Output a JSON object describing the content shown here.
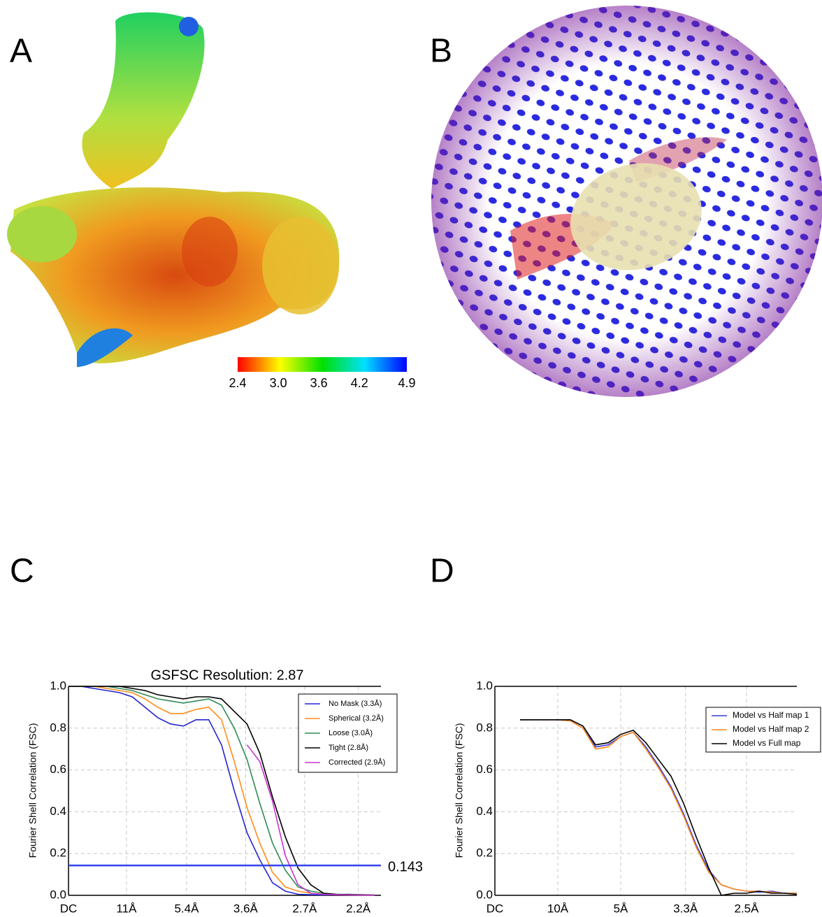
{
  "panel_labels": [
    "A",
    "B",
    "C",
    "D"
  ],
  "colorbar": {
    "lim": [
      2.4,
      4.9
    ],
    "ticks": [
      2.4,
      {
        "value": 3.0,
        "label": "3.0"
      },
      3.6,
      4.2,
      4.9
    ]
  },
  "chart_data": [
    {
      "type": "line",
      "title": "GSFSC Resolution: 2.87",
      "ylabel": "Fourier Shell Correlation (FSC)",
      "x": [
        0,
        0.02,
        0.04,
        0.06,
        0.08,
        0.1,
        0.12,
        0.14,
        0.16,
        0.18,
        0.2,
        0.22,
        0.24,
        0.26,
        0.28,
        0.3,
        0.32,
        0.34,
        0.36,
        0.38,
        0.4,
        0.42,
        0.44,
        0.46,
        0.48
      ],
      "series": [
        {
          "name": "No Mask (3.3Å)",
          "color": "#2424d4",
          "values": [
            1.0,
            1.0,
            0.99,
            0.98,
            0.97,
            0.95,
            0.9,
            0.85,
            0.82,
            0.81,
            0.84,
            0.84,
            0.72,
            0.5,
            0.3,
            0.17,
            0.06,
            0.02,
            0.005,
            0.003,
            0.002,
            0.003,
            0.005,
            0.002,
            0.001
          ]
        },
        {
          "name": "Spherical (3.2Å)",
          "color": "#ff8c1a",
          "values": [
            1.0,
            1.0,
            1.0,
            0.99,
            0.98,
            0.97,
            0.94,
            0.9,
            0.87,
            0.87,
            0.89,
            0.9,
            0.84,
            0.64,
            0.42,
            0.25,
            0.11,
            0.04,
            0.02,
            0.01,
            0.005,
            0.004,
            0.003,
            0.002,
            0.001
          ]
        },
        {
          "name": "Loose (3.0Å)",
          "color": "#2e8b57",
          "values": [
            1.0,
            1.0,
            1.0,
            1.0,
            0.99,
            0.98,
            0.96,
            0.94,
            0.93,
            0.92,
            0.93,
            0.94,
            0.91,
            0.8,
            0.65,
            0.44,
            0.25,
            0.12,
            0.04,
            0.02,
            0.01,
            0.005,
            0.004,
            0.003,
            0.002
          ]
        },
        {
          "name": "Tight (2.8Å)",
          "color": "#000000",
          "values": [
            1.0,
            1.0,
            1.0,
            1.0,
            1.0,
            0.99,
            0.98,
            0.96,
            0.95,
            0.94,
            0.95,
            0.95,
            0.94,
            0.88,
            0.82,
            0.68,
            0.47,
            0.28,
            0.13,
            0.05,
            0.01,
            0.005,
            0.003,
            0.002,
            0.001
          ]
        },
        {
          "name": "Corrected (2.9Å)",
          "color": "#cc33cc",
          "values": [
            null,
            null,
            null,
            null,
            null,
            null,
            null,
            null,
            null,
            null,
            null,
            null,
            null,
            null,
            0.72,
            0.64,
            0.45,
            0.19,
            0.05,
            0.01,
            0.005,
            0.003,
            0.002,
            0.001,
            0.001
          ]
        }
      ],
      "threshold": 0.143,
      "threshold_color": "#3344ee",
      "xlim": [
        0,
        0.49
      ],
      "xticks": [
        {
          "value": 0,
          "label": "DC"
        },
        {
          "value": 0.0909,
          "label": "11Å"
        },
        {
          "value": 0.1852,
          "label": "5.4Å"
        },
        {
          "value": 0.2778,
          "label": "3.6Å"
        },
        {
          "value": 0.3704,
          "label": "2.7Å"
        },
        {
          "value": 0.4545,
          "label": "2.2Å"
        }
      ],
      "ylim": [
        0,
        1
      ],
      "yticks": [
        {
          "value": 0,
          "label": "0.0"
        },
        0.2,
        0.4,
        0.6,
        0.8,
        {
          "value": 1,
          "label": "1.0"
        }
      ],
      "grid": true,
      "legend": "upper right"
    },
    {
      "type": "line",
      "ylabel": "Fourier Shell Correlation (FSC)",
      "x": [
        0.04,
        0.06,
        0.08,
        0.1,
        0.12,
        0.14,
        0.16,
        0.18,
        0.2,
        0.22,
        0.24,
        0.26,
        0.28,
        0.3,
        0.32,
        0.34,
        0.36,
        0.38,
        0.4,
        0.42,
        0.44,
        0.46,
        0.48
      ],
      "series": [
        {
          "name": "Model vs Half map 1",
          "color": "#3a3ae0",
          "values": [
            0.84,
            0.84,
            0.84,
            0.84,
            0.835,
            0.8,
            0.71,
            0.72,
            0.76,
            0.78,
            0.71,
            0.62,
            0.52,
            0.39,
            0.24,
            0.12,
            0.05,
            0.03,
            0.02,
            0.015,
            0.02,
            0.01,
            0.01
          ]
        },
        {
          "name": "Model vs Half map 2",
          "color": "#ff8c1a",
          "values": [
            0.84,
            0.84,
            0.84,
            0.84,
            0.835,
            0.8,
            0.7,
            0.71,
            0.76,
            0.78,
            0.7,
            0.61,
            0.51,
            0.38,
            0.23,
            0.11,
            0.05,
            0.03,
            0.02,
            0.02,
            0.015,
            0.01,
            0.01
          ]
        },
        {
          "name": "Model vs Full map",
          "color": "#000000",
          "values": [
            0.84,
            0.84,
            0.84,
            0.84,
            0.84,
            0.81,
            0.72,
            0.73,
            0.77,
            0.79,
            0.73,
            0.65,
            0.57,
            0.44,
            0.28,
            0.13,
            0.0,
            0.01,
            0.01,
            0.02,
            0.01,
            0.01,
            0.005
          ]
        }
      ],
      "xlim": [
        0,
        0.48
      ],
      "xticks": [
        {
          "value": 0,
          "label": "DC"
        },
        {
          "value": 0.1,
          "label": "10Å"
        },
        {
          "value": 0.2,
          "label": "5Å"
        },
        {
          "value": 0.303,
          "label": "3.3Å"
        },
        {
          "value": 0.4,
          "label": "2.5Å"
        }
      ],
      "ylim": [
        0,
        1
      ],
      "yticks": [
        {
          "value": 0,
          "label": "0.0"
        },
        0.2,
        0.4,
        0.6,
        0.8,
        {
          "value": 1,
          "label": "1.0"
        }
      ],
      "grid": true,
      "legend": "upper right"
    }
  ]
}
